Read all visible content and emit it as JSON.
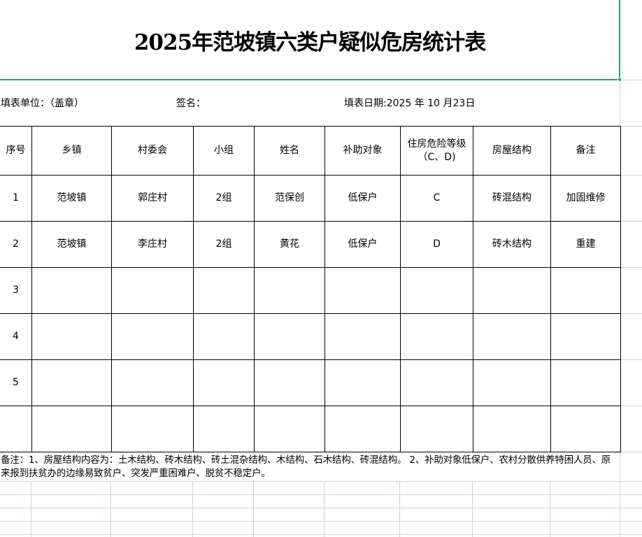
{
  "title": "2025年范坡镇六类户疑似危房统计表",
  "info": {
    "unit": "填表单位：（盖章）",
    "signature": "签名：",
    "date": "填表日期:2025 年  10  月23日"
  },
  "headers": [
    "序号",
    "乡镇",
    "村委会",
    "小组",
    "姓名",
    "补助对象",
    "住房危险等级\n（C、D)",
    "房屋结构",
    "备注"
  ],
  "rows": [
    [
      "1",
      "范坡镇",
      "郭庄村",
      "2组",
      "范保创",
      "低保户",
      "C",
      "砖混结构",
      "加固维修"
    ],
    [
      "2",
      "范坡镇",
      "李庄村",
      "2组",
      "黄花",
      "低保户",
      "D",
      "砖木结构",
      "重建"
    ],
    [
      "3",
      "",
      "",
      "",
      "",
      "",
      "",
      "",
      ""
    ],
    [
      "4",
      "",
      "",
      "",
      "",
      "",
      "",
      "",
      ""
    ],
    [
      "5",
      "",
      "",
      "",
      "",
      "",
      "",
      "",
      ""
    ],
    [
      "",
      "",
      "",
      "",
      "",
      "",
      "",
      "",
      ""
    ]
  ],
  "note": "备注：1、房屋结构内容为：土木结构、砖木结构、砖土混杂结构、木结构、石木结构、砖混结构。 2、补助对象低保户、农村分散供养特困人员、原来报到扶贫办的边缘易致贫户、突发严重困难户、脱贫不稳定户。",
  "colors": {
    "selection": "#21a366",
    "gridline": "#c8d0e0"
  }
}
